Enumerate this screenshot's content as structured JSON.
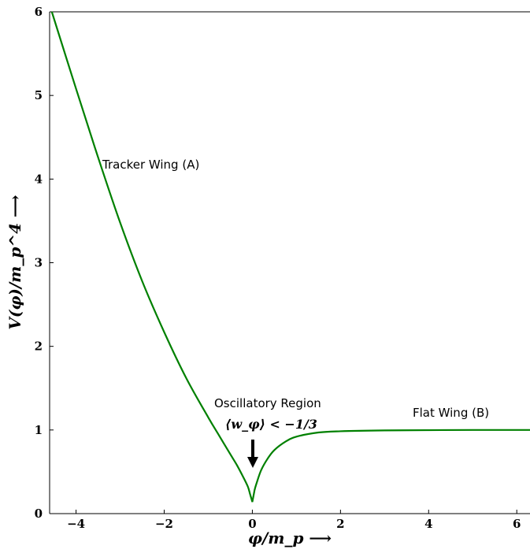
{
  "chart_data": {
    "type": "line",
    "title": "",
    "xlabel": "φ/m_p ⟶",
    "ylabel": "V(φ)/m_p^4 ⟶",
    "xlim": [
      -4.6,
      6.3
    ],
    "ylim": [
      0,
      6
    ],
    "xticks": [
      -4,
      -2,
      0,
      2,
      4,
      6
    ],
    "xtick_labels": [
      "−4",
      "−2",
      "0",
      "2",
      "4",
      "6"
    ],
    "yticks": [
      0,
      1,
      2,
      3,
      4,
      5,
      6
    ],
    "ytick_labels": [
      "0",
      "1",
      "2",
      "3",
      "4",
      "5",
      "6"
    ],
    "grid": false,
    "series": [
      {
        "color": "#008000",
        "x": [
          -4.55,
          -4.0,
          -3.5,
          -3.0,
          -2.5,
          -2.0,
          -1.5,
          -1.0,
          -0.75,
          -0.5,
          -0.35,
          -0.2,
          -0.1,
          -0.05,
          0.0,
          0.05,
          0.1,
          0.2,
          0.35,
          0.5,
          0.75,
          1.0,
          1.5,
          2.0,
          3.0,
          4.0,
          5.0,
          6.3
        ],
        "y": [
          6.0,
          5.08,
          4.26,
          3.48,
          2.78,
          2.17,
          1.62,
          1.15,
          0.93,
          0.71,
          0.58,
          0.43,
          0.32,
          0.23,
          0.14,
          0.28,
          0.37,
          0.52,
          0.66,
          0.76,
          0.86,
          0.92,
          0.97,
          0.985,
          0.995,
          0.998,
          1.0,
          1.0
        ]
      }
    ],
    "annotations": {
      "tracker": "Tracker Wing (A)",
      "oscillatory": "Oscillatory Region",
      "wphi": "⟨w_φ⟩ < −1/3",
      "flat": "Flat Wing (B)"
    }
  }
}
